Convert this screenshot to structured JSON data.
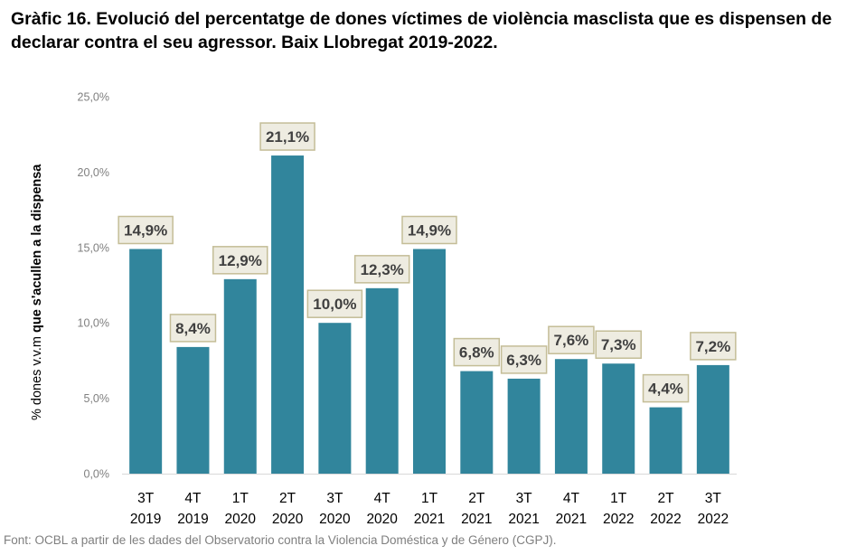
{
  "title_lines": [
    "Gràfic 16. Evolució del percentatge de dones víctimes de violència masclista que es dispensen de",
    "declarar contra el seu agressor. Baix Llobregat 2019-2022."
  ],
  "source": "Font: OCBL a partir de les dades del Observatorio contra la Violencia Doméstica y de Género (CGPJ).",
  "ylabel_parts": [
    "% dones ",
    "v.v.m",
    " que ",
    "s'acullen a la dispensa"
  ],
  "colors": {
    "bar": "#31859c",
    "label_bg": "#eeece1",
    "label_border": "#c4bd97",
    "label_text": "#404040",
    "tick_text": "#7f7f7f",
    "axis": "#d9d9d9"
  },
  "chart_data": {
    "type": "bar",
    "categories": [
      [
        "3T",
        "2019"
      ],
      [
        "4T",
        "2019"
      ],
      [
        "1T",
        "2020"
      ],
      [
        "2T",
        "2020"
      ],
      [
        "3T",
        "2020"
      ],
      [
        "4T",
        "2020"
      ],
      [
        "1T",
        "2021"
      ],
      [
        "2T",
        "2021"
      ],
      [
        "3T",
        "2021"
      ],
      [
        "4T",
        "2021"
      ],
      [
        "1T",
        "2022"
      ],
      [
        "2T",
        "2022"
      ],
      [
        "3T",
        "2022"
      ]
    ],
    "values": [
      14.9,
      8.4,
      12.9,
      21.1,
      10.0,
      12.3,
      14.9,
      6.8,
      6.3,
      7.6,
      7.3,
      4.4,
      7.2
    ],
    "data_labels": [
      "14,9%",
      "8,4%",
      "12,9%",
      "21,1%",
      "10,0%",
      "12,3%",
      "14,9%",
      "6,8%",
      "6,3%",
      "7,6%",
      "7,3%",
      "4,4%",
      "7,2%"
    ],
    "yticks": [
      0,
      5,
      10,
      15,
      20,
      25
    ],
    "ytick_labels": [
      "0,0%",
      "5,0%",
      "10,0%",
      "15,0%",
      "20,0%",
      "25,0%"
    ],
    "ylim": [
      0,
      25
    ],
    "grid": false,
    "legend": "none"
  }
}
